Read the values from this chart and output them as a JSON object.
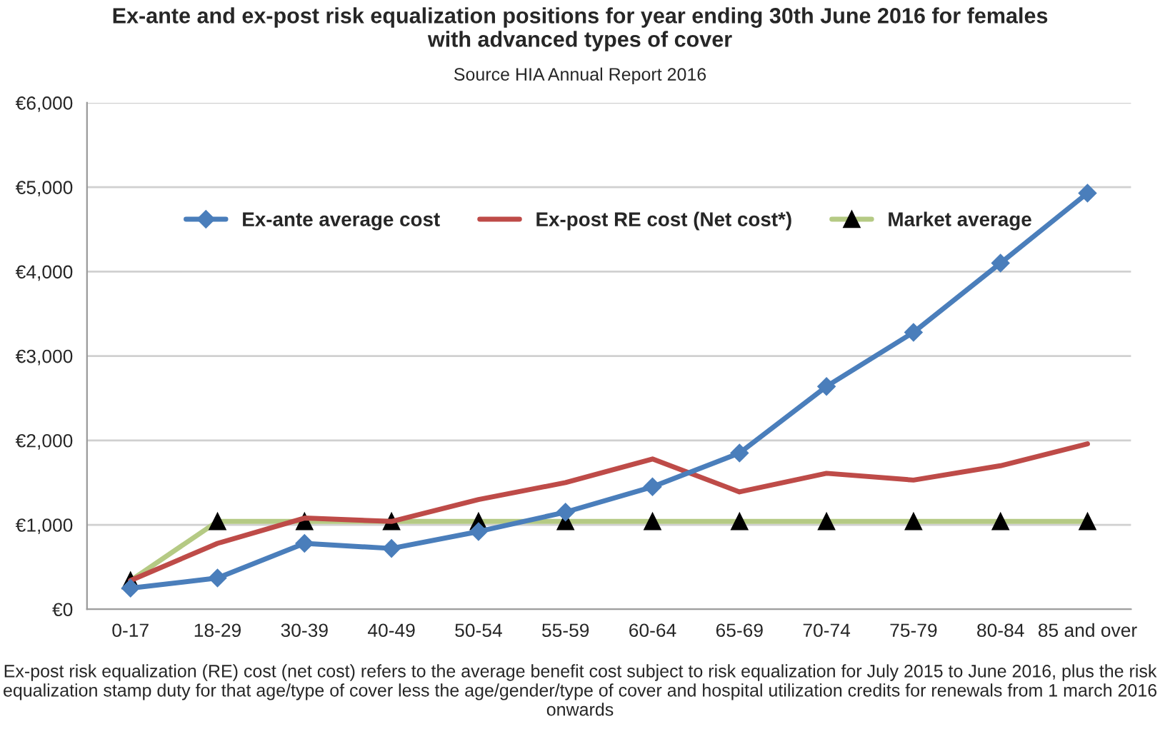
{
  "chart_data": {
    "type": "line",
    "title": "Ex-ante and ex-post risk equalization positions for year ending 30th June 2016 for females\nwith advanced types of cover",
    "subtitle": "Source HIA Annual Report 2016",
    "categories": [
      "0-17",
      "18-29",
      "30-39",
      "40-49",
      "50-54",
      "55-59",
      "60-64",
      "65-69",
      "70-74",
      "75-79",
      "80-84",
      "85 and over"
    ],
    "series": [
      {
        "name": "Ex-ante average cost",
        "color": "#4a7ebb",
        "marker": "diamond",
        "values": [
          250,
          370,
          780,
          720,
          920,
          1150,
          1450,
          1850,
          2640,
          3280,
          4100,
          4930
        ]
      },
      {
        "name": "Ex-post RE cost (Net cost*)",
        "color": "#be4b48",
        "marker": "none",
        "values": [
          340,
          780,
          1080,
          1040,
          1300,
          1500,
          1780,
          1390,
          1610,
          1530,
          1700,
          1960
        ]
      },
      {
        "name": "Market average",
        "color": "#b5ca84",
        "marker": "triangle",
        "values": [
          340,
          1040,
          1040,
          1040,
          1040,
          1040,
          1040,
          1040,
          1040,
          1040,
          1040,
          1040
        ]
      }
    ],
    "ylim": [
      0,
      6000
    ],
    "yticks": [
      {
        "value": 0,
        "label": "€0"
      },
      {
        "value": 1000,
        "label": "€1,000"
      },
      {
        "value": 2000,
        "label": "€2,000"
      },
      {
        "value": 3000,
        "label": "€3,000"
      },
      {
        "value": 4000,
        "label": "€4,000"
      },
      {
        "value": 5000,
        "label": "€5,000"
      },
      {
        "value": 6000,
        "label": "€6,000"
      }
    ],
    "grid": "y",
    "legend": "top",
    "annotations": [
      "Ex-post risk equalization (RE) cost (net cost) refers to the average benefit cost subject to risk equalization for July 2015 to June 2016, plus the risk equalization stamp duty for that age/type of cover less the age/gender/type of cover and hospital utilization credits for renewals from 1 march 2016 onwards"
    ]
  }
}
